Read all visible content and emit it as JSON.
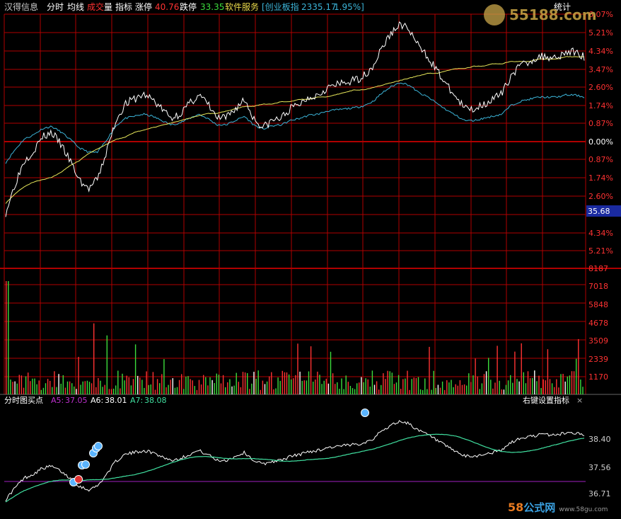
{
  "header": {
    "stock_name": "汉得信息",
    "tab_intraday": "分时",
    "tab_ma": "均线",
    "tab_volume_a": "成交",
    "tab_volume_b": "量",
    "tab_indicator": "指标",
    "limit_up_label": "涨停",
    "limit_up_value": "40.76",
    "limit_down_label": "跌停",
    "limit_down_value": "33.35",
    "sector": "软件服务",
    "index_label": "[创业板指",
    "index_value": "2335.17",
    "index_change": "1.95%]",
    "stats_button": "统计",
    "watermark_top": "55188.com"
  },
  "colors": {
    "background": "#000000",
    "grid_red": "#b00000",
    "price_line": "#ffffff",
    "avg_line": "#e8e85a",
    "index_line": "#3cb4d8",
    "up_red": "#ff3232",
    "down_green": "#3cdc3c",
    "signal_ma": "#40e0a0",
    "purple_line": "#a020c0"
  },
  "price_axis_labels": [
    "6.07%",
    "5.21%",
    "4.34%",
    "3.47%",
    "2.60%",
    "1.74%",
    "0.87%",
    "0.00%",
    "0.87%",
    "1.74%",
    "2.60%",
    "35.68",
    "4.34%",
    "5.21%"
  ],
  "current_price_tag": "35.68",
  "volume_axis_labels": [
    "8187",
    "7018",
    "5848",
    "4678",
    "3509",
    "2339",
    "1170"
  ],
  "indicator": {
    "title": "分时图买点",
    "a5_label": "A5:",
    "a5_value": "37.05",
    "a6_label": "A6:",
    "a6_value": "38.01",
    "a7_label": "A7:",
    "a7_value": "38.08",
    "settings_text": "右键设置指标",
    "close_glyph": "×",
    "axis_labels": [
      "38.40",
      "37.56",
      "36.71"
    ]
  },
  "watermark_bottom": {
    "num": "58",
    "cn": "公式网",
    "url": "www.58gu.com"
  },
  "chart_data": {
    "type": "line",
    "title": "",
    "series": [
      {
        "name": "",
        "values": [
          0.16,
          0.28,
          0.38,
          0.42,
          0.48,
          0.5,
          0.45,
          0.38,
          0.3,
          0.26,
          0.3,
          0.42,
          0.55,
          0.62,
          0.64,
          0.66,
          0.64,
          0.6,
          0.56,
          0.58,
          0.62,
          0.66,
          0.62,
          0.56,
          0.56,
          0.6,
          0.64,
          0.56,
          0.52,
          0.55,
          0.56,
          0.6,
          0.62,
          0.65,
          0.66,
          0.69,
          0.7,
          0.71,
          0.72,
          0.74,
          0.78,
          0.86,
          0.92,
          0.96,
          0.93,
          0.86,
          0.82,
          0.76,
          0.7,
          0.65,
          0.6,
          0.6,
          0.62,
          0.64,
          0.66,
          0.74,
          0.78,
          0.8,
          0.82,
          0.82,
          0.82,
          0.84,
          0.84,
          0.82
        ]
      },
      {
        "name": "",
        "values": [
          0.2,
          0.24,
          0.27,
          0.29,
          0.3,
          0.31,
          0.33,
          0.36,
          0.38,
          0.41,
          0.43,
          0.45,
          0.47,
          0.48,
          0.5,
          0.51,
          0.52,
          0.53,
          0.54,
          0.55,
          0.56,
          0.57,
          0.58,
          0.58,
          0.59,
          0.6,
          0.61,
          0.61,
          0.62,
          0.62,
          0.63,
          0.63,
          0.64,
          0.64,
          0.65,
          0.65,
          0.66,
          0.67,
          0.68,
          0.68,
          0.69,
          0.7,
          0.71,
          0.72,
          0.73,
          0.74,
          0.75,
          0.75,
          0.76,
          0.77,
          0.77,
          0.78,
          0.78,
          0.79,
          0.79,
          0.8,
          0.8,
          0.8,
          0.81,
          0.81,
          0.81,
          0.82,
          0.82,
          0.82
        ]
      }
    ]
  }
}
